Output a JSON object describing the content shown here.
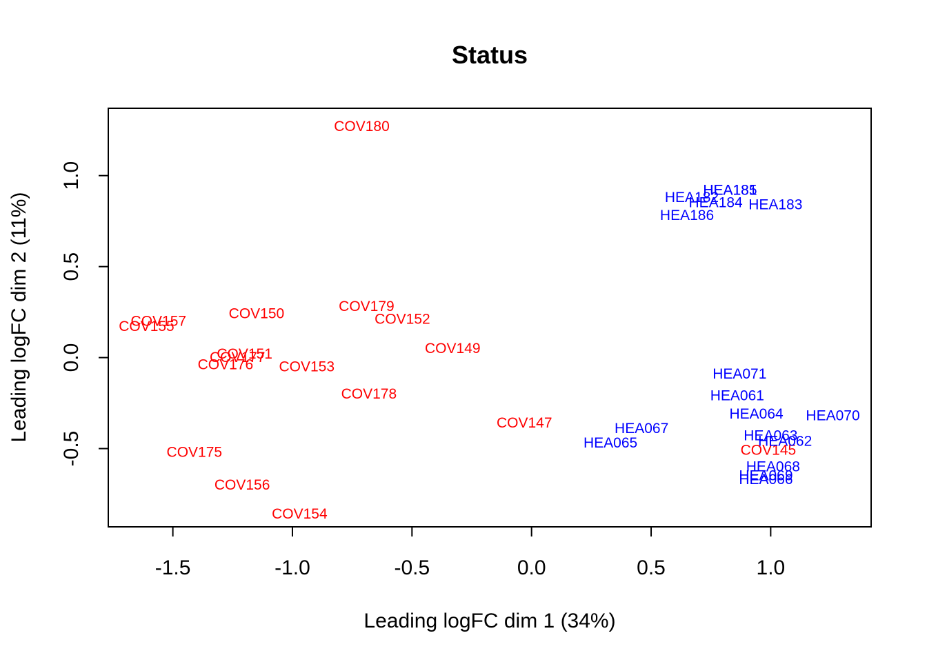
{
  "chart_data": {
    "type": "scatter",
    "title": "Status",
    "xlabel": "Leading logFC dim 1 (34%)",
    "ylabel": "Leading logFC dim 2 (11%)",
    "xlim": [
      -1.77,
      1.42
    ],
    "ylim": [
      -0.93,
      1.37
    ],
    "xticks": [
      -1.5,
      -1.0,
      -0.5,
      0.0,
      0.5,
      1.0
    ],
    "xtick_labels": [
      "-1.5",
      "-1.0",
      "-0.5",
      "0.0",
      "0.5",
      "1.0"
    ],
    "yticks": [
      -0.5,
      0.0,
      0.5,
      1.0
    ],
    "ytick_labels": [
      "-0.5",
      "0.0",
      "0.5",
      "1.0"
    ],
    "grid": false,
    "legend": "none",
    "colors": {
      "COV": "#ff0000",
      "HEA": "#0000ff"
    },
    "points": [
      {
        "label": "COV180",
        "x": -0.71,
        "y": 1.27,
        "group": "COV"
      },
      {
        "label": "COV157",
        "x": -1.56,
        "y": 0.2,
        "group": "COV"
      },
      {
        "label": "COV155",
        "x": -1.61,
        "y": 0.17,
        "group": "COV"
      },
      {
        "label": "COV150",
        "x": -1.15,
        "y": 0.24,
        "group": "COV"
      },
      {
        "label": "COV179",
        "x": -0.69,
        "y": 0.28,
        "group": "COV"
      },
      {
        "label": "COV152",
        "x": -0.54,
        "y": 0.21,
        "group": "COV"
      },
      {
        "label": "COV149",
        "x": -0.33,
        "y": 0.05,
        "group": "COV"
      },
      {
        "label": "COV151",
        "x": -1.2,
        "y": 0.02,
        "group": "COV"
      },
      {
        "label": "COV177",
        "x": -1.23,
        "y": 0.0,
        "group": "COV"
      },
      {
        "label": "COV176",
        "x": -1.28,
        "y": -0.04,
        "group": "COV"
      },
      {
        "label": "COV153",
        "x": -0.94,
        "y": -0.05,
        "group": "COV"
      },
      {
        "label": "COV178",
        "x": -0.68,
        "y": -0.2,
        "group": "COV"
      },
      {
        "label": "COV147",
        "x": -0.03,
        "y": -0.36,
        "group": "COV"
      },
      {
        "label": "COV175",
        "x": -1.41,
        "y": -0.52,
        "group": "COV"
      },
      {
        "label": "COV156",
        "x": -1.21,
        "y": -0.7,
        "group": "COV"
      },
      {
        "label": "COV154",
        "x": -0.97,
        "y": -0.86,
        "group": "COV"
      },
      {
        "label": "COV145",
        "x": 0.99,
        "y": -0.51,
        "group": "COV"
      },
      {
        "label": "HEA185",
        "x": 0.83,
        "y": 0.92,
        "group": "HEA"
      },
      {
        "label": "HEA181",
        "x": 0.83,
        "y": 0.92,
        "group": "HEA"
      },
      {
        "label": "HEA182",
        "x": 0.67,
        "y": 0.88,
        "group": "HEA"
      },
      {
        "label": "HEA184",
        "x": 0.77,
        "y": 0.85,
        "group": "HEA"
      },
      {
        "label": "HEA183",
        "x": 1.02,
        "y": 0.84,
        "group": "HEA"
      },
      {
        "label": "HEA186",
        "x": 0.65,
        "y": 0.78,
        "group": "HEA"
      },
      {
        "label": "HEA071",
        "x": 0.87,
        "y": -0.09,
        "group": "HEA"
      },
      {
        "label": "HEA061",
        "x": 0.86,
        "y": -0.21,
        "group": "HEA"
      },
      {
        "label": "HEA064",
        "x": 0.94,
        "y": -0.31,
        "group": "HEA"
      },
      {
        "label": "HEA070",
        "x": 1.26,
        "y": -0.32,
        "group": "HEA"
      },
      {
        "label": "HEA067",
        "x": 0.46,
        "y": -0.39,
        "group": "HEA"
      },
      {
        "label": "HEA065",
        "x": 0.33,
        "y": -0.47,
        "group": "HEA"
      },
      {
        "label": "HEA063",
        "x": 1.0,
        "y": -0.43,
        "group": "HEA"
      },
      {
        "label": "HEA062",
        "x": 1.06,
        "y": -0.46,
        "group": "HEA"
      },
      {
        "label": "HEA068",
        "x": 1.01,
        "y": -0.6,
        "group": "HEA"
      },
      {
        "label": "HEA069",
        "x": 0.98,
        "y": -0.65,
        "group": "HEA"
      },
      {
        "label": "HEA066",
        "x": 0.98,
        "y": -0.67,
        "group": "HEA"
      }
    ]
  }
}
